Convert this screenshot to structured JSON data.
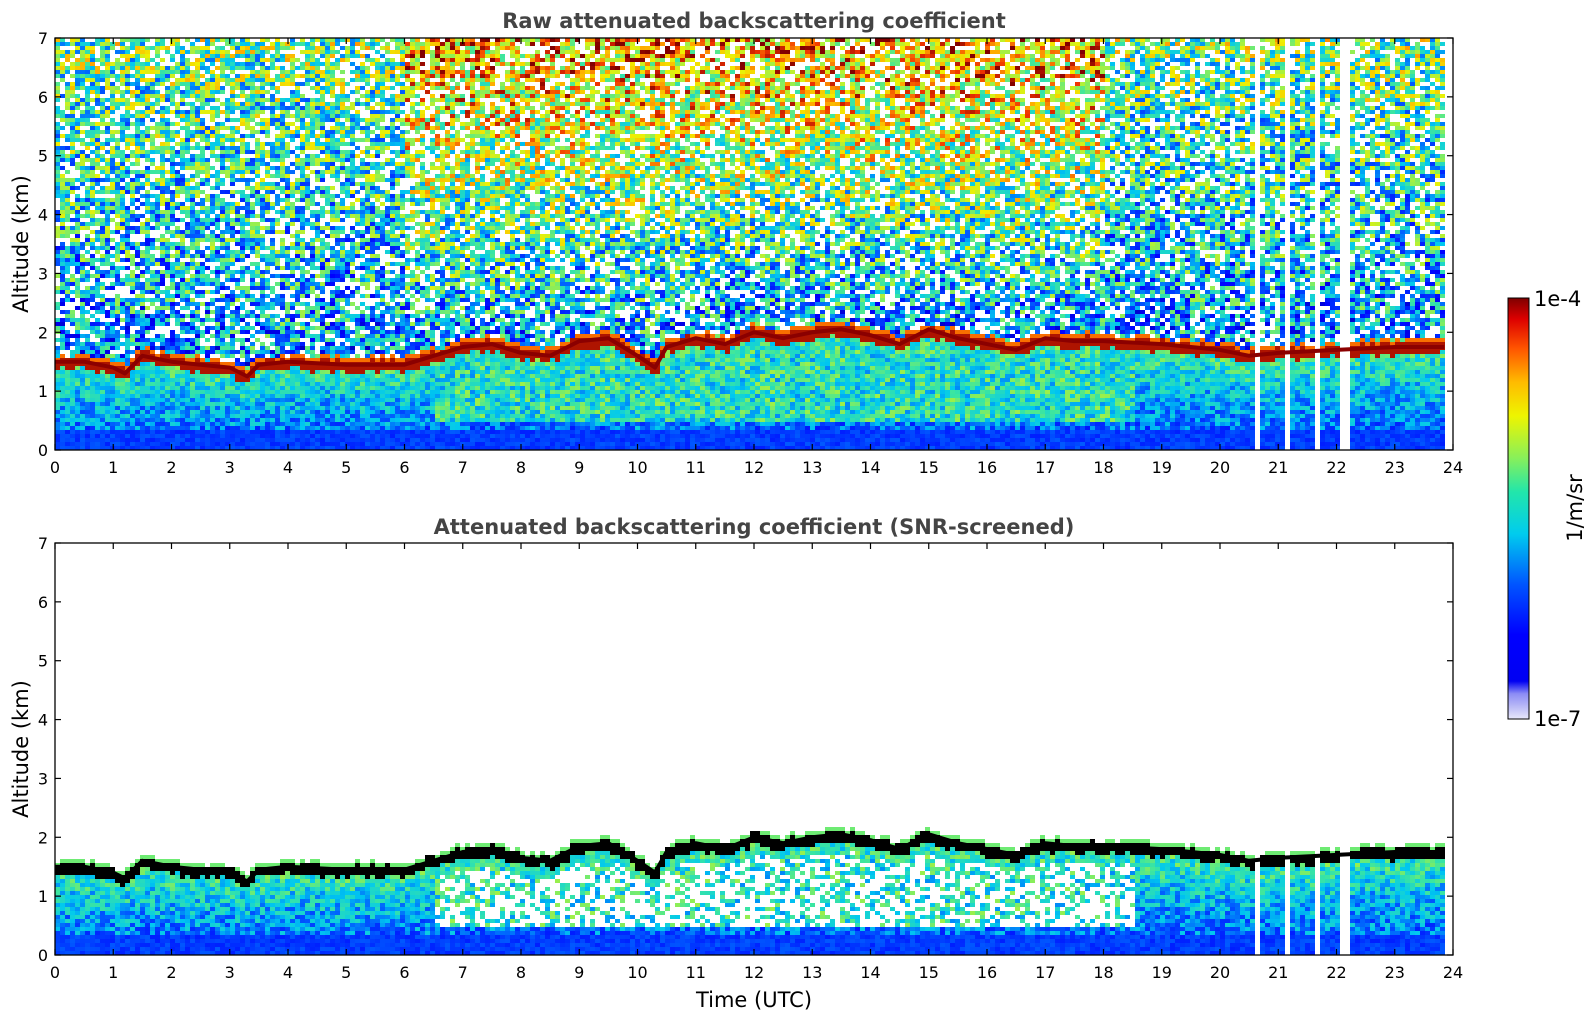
{
  "chart_data": [
    {
      "type": "heatmap",
      "title": "Raw attenuated backscattering coefficient",
      "xlabel": "",
      "ylabel": "Altitude (km)",
      "xlim": [
        0,
        24
      ],
      "ylim": [
        0,
        7
      ],
      "xticks": [
        0,
        1,
        2,
        3,
        4,
        5,
        6,
        7,
        8,
        9,
        10,
        11,
        12,
        13,
        14,
        15,
        16,
        17,
        18,
        19,
        20,
        21,
        22,
        23,
        24
      ],
      "yticks": [
        0,
        1,
        2,
        3,
        4,
        5,
        6,
        7
      ],
      "xtick_labels": [
        "0",
        "1",
        "2",
        "3",
        "4",
        "5",
        "6",
        "7",
        "8",
        "9",
        "10",
        "11",
        "12",
        "13",
        "14",
        "15",
        "16",
        "17",
        "18",
        "19",
        "20",
        "21",
        "22",
        "23",
        "24"
      ],
      "ytick_labels": [
        "0",
        "1",
        "2",
        "3",
        "4",
        "5",
        "6",
        "7"
      ],
      "data_time_range": [
        0,
        23.85
      ],
      "missing_profiles_utc": [
        20.65,
        21.15,
        21.65,
        22.15
      ],
      "layer_top_km": {
        "time": [
          0,
          0.5,
          1.0,
          1.2,
          1.5,
          2.0,
          2.5,
          3.0,
          3.3,
          3.5,
          4.0,
          5.0,
          6.0,
          6.5,
          7.0,
          7.5,
          8.0,
          8.5,
          9.0,
          9.5,
          10.0,
          10.3,
          10.5,
          11.0,
          11.5,
          12.0,
          12.5,
          13.0,
          13.5,
          14.0,
          14.5,
          15.0,
          15.5,
          16.0,
          16.5,
          17.0,
          17.5,
          18.0,
          19.0,
          20.0,
          20.5,
          21.0,
          22.0,
          23.0,
          23.85
        ],
        "altitude": [
          1.5,
          1.5,
          1.4,
          1.3,
          1.6,
          1.5,
          1.45,
          1.4,
          1.25,
          1.45,
          1.5,
          1.45,
          1.45,
          1.6,
          1.75,
          1.8,
          1.65,
          1.6,
          1.85,
          1.9,
          1.6,
          1.4,
          1.75,
          1.9,
          1.8,
          2.0,
          1.9,
          2.0,
          2.05,
          1.95,
          1.8,
          2.05,
          1.9,
          1.8,
          1.7,
          1.9,
          1.85,
          1.85,
          1.8,
          1.7,
          1.6,
          1.65,
          1.7,
          1.75,
          1.75
        ]
      },
      "colorbar": {
        "label": "1/m/sr",
        "min_label": "1e-7",
        "max_label": "1e-4",
        "scale": "log",
        "range": [
          1e-07,
          0.0001
        ]
      }
    },
    {
      "type": "heatmap",
      "title": "Attenuated backscattering coefficient (SNR-screened)",
      "xlabel": "Time (UTC)",
      "ylabel": "Altitude (km)",
      "xlim": [
        0,
        24
      ],
      "ylim": [
        0,
        7
      ],
      "xticks": [
        0,
        1,
        2,
        3,
        4,
        5,
        6,
        7,
        8,
        9,
        10,
        11,
        12,
        13,
        14,
        15,
        16,
        17,
        18,
        19,
        20,
        21,
        22,
        23,
        24
      ],
      "yticks": [
        0,
        1,
        2,
        3,
        4,
        5,
        6,
        7
      ],
      "xtick_labels": [
        "0",
        "1",
        "2",
        "3",
        "4",
        "5",
        "6",
        "7",
        "8",
        "9",
        "10",
        "11",
        "12",
        "13",
        "14",
        "15",
        "16",
        "17",
        "18",
        "19",
        "20",
        "21",
        "22",
        "23",
        "24"
      ],
      "ytick_labels": [
        "0",
        "1",
        "2",
        "3",
        "4",
        "5",
        "6",
        "7"
      ]
    }
  ]
}
